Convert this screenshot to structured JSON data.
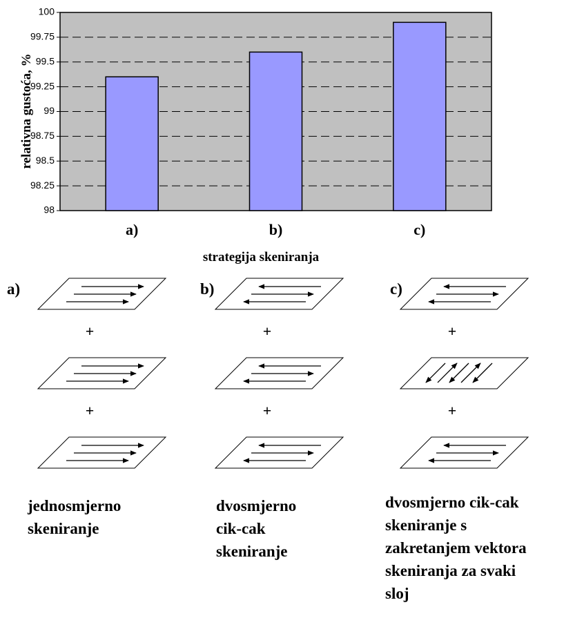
{
  "chart_data": {
    "type": "bar",
    "categories": [
      "a)",
      "b)",
      "c)"
    ],
    "values": [
      99.35,
      99.6,
      99.9
    ],
    "color": "#9999ff",
    "ylim": [
      98,
      100
    ],
    "yticks": [
      98,
      98.25,
      98.5,
      98.75,
      99,
      99.25,
      99.5,
      99.75,
      100
    ],
    "grid": true,
    "x_label": "strategija skeniranja",
    "y_label": "relativna gustoća, %"
  },
  "diagrams": {
    "plus": "+",
    "items": [
      {
        "label": "a)",
        "caption": [
          "jednosmjerno",
          "skeniranje"
        ]
      },
      {
        "label": "b)",
        "caption": [
          "dvosmjerno",
          "cik-cak",
          "skeniranje"
        ]
      },
      {
        "label": "c)",
        "caption": [
          "dvosmjerno cik-cak",
          "skeniranje s",
          "zakretanjem vektora",
          "skeniranja za svaki",
          "sloj"
        ]
      }
    ]
  }
}
